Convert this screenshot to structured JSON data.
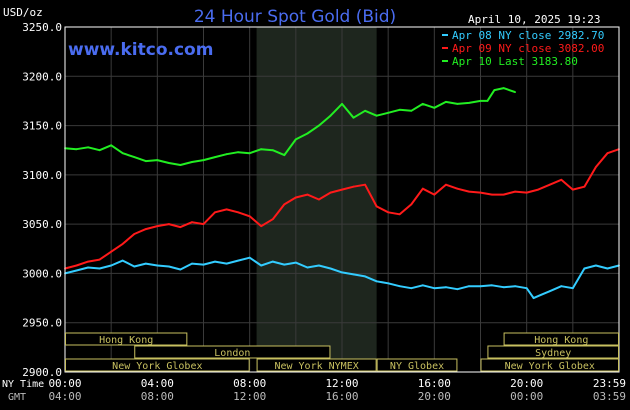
{
  "header": {
    "unit": "USD/oz",
    "title": "24 Hour Spot Gold (Bid)",
    "date": "April 10, 2025 19:23",
    "watermark": "www.kitco.com"
  },
  "footer": {
    "ny_label": "NY Time",
    "gmt_label": "GMT"
  },
  "sessions": [
    {
      "label": "Hong Kong",
      "start": 0.0,
      "end": 5.3,
      "row": 0
    },
    {
      "label": "London",
      "start": 3.0,
      "end": 11.5,
      "row": 1
    },
    {
      "label": "New York Globex",
      "start": 0.0,
      "end": 8.0,
      "row": 2
    },
    {
      "label": "New York NYMEX",
      "start": 8.3,
      "end": 13.5,
      "row": 2
    },
    {
      "label": "NY Globex",
      "start": 13.5,
      "end": 17.0,
      "row": 2
    },
    {
      "label": "Hong Kong",
      "start": 19.0,
      "end": 24.0,
      "row": 0
    },
    {
      "label": "Sydney",
      "start": 18.3,
      "end": 24.0,
      "row": 1
    },
    {
      "label": "New York Globex",
      "start": 18.0,
      "end": 24.0,
      "row": 2
    }
  ],
  "colors": {
    "background": "#000000",
    "grid": "#3a3a3a",
    "shade": "#1e261e",
    "axis": "#ffffff",
    "title": "#4a6cf0",
    "session_box": "#c8c060",
    "gmt_text": "#bbbbbb",
    "apr08": "#33ccff",
    "apr09": "#ff1a1a",
    "apr10": "#22ee22"
  },
  "chart_data": {
    "type": "line",
    "title": "24 Hour Spot Gold (Bid)",
    "ylabel": "USD/oz",
    "ylim": [
      2900,
      3250
    ],
    "xlim": [
      0,
      24
    ],
    "yticks": [
      "3250.0",
      "3200.0",
      "3150.0",
      "3100.0",
      "3050.0",
      "3000.0",
      "2950.0",
      "2900.0"
    ],
    "ytick_values": [
      3250,
      3200,
      3150,
      3100,
      3050,
      3000,
      2950,
      2900
    ],
    "xticks_ny": [
      "00:00",
      "04:00",
      "08:00",
      "12:00",
      "16:00",
      "20:00",
      "23:59"
    ],
    "xticks_gmt": [
      "04:00",
      "08:00",
      "12:00",
      "16:00",
      "20:00",
      "00:00",
      "03:59"
    ],
    "xtick_hours": [
      0,
      4,
      8,
      12,
      16,
      20,
      24
    ],
    "shaded_hours": [
      8.3,
      13.5
    ],
    "grid": true,
    "legend_position": "top-right",
    "series": [
      {
        "name": "Apr 08 NY close 2982.70",
        "color": "#33ccff",
        "x": [
          0,
          0.5,
          1,
          1.5,
          2,
          2.5,
          3,
          3.5,
          4,
          4.5,
          5,
          5.5,
          6,
          6.5,
          7,
          7.5,
          8,
          8.5,
          9,
          9.5,
          10,
          10.5,
          11,
          11.5,
          12,
          12.5,
          13,
          13.5,
          14,
          14.5,
          15,
          15.5,
          16,
          16.5,
          17,
          17.5,
          18,
          18.5,
          19,
          19.5,
          20,
          20.3,
          20.6,
          21,
          21.5,
          22,
          22.5,
          23,
          23.5,
          24
        ],
        "values": [
          3000,
          3003,
          3006,
          3005,
          3008,
          3013,
          3007,
          3010,
          3008,
          3007,
          3004,
          3010,
          3009,
          3012,
          3010,
          3013,
          3016,
          3008,
          3012,
          3009,
          3011,
          3006,
          3008,
          3005,
          3001,
          2999,
          2997,
          2992,
          2990,
          2987,
          2985,
          2988,
          2985,
          2986,
          2984,
          2987,
          2987,
          2988,
          2986,
          2987,
          2985,
          2975,
          2978,
          2982,
          2987,
          2985,
          3005,
          3008,
          3005,
          3008
        ]
      },
      {
        "name": "Apr 09 NY close 3082.00",
        "color": "#ff1a1a",
        "x": [
          0,
          0.5,
          1,
          1.5,
          2,
          2.5,
          3,
          3.5,
          4,
          4.5,
          5,
          5.5,
          6,
          6.5,
          7,
          7.5,
          8,
          8.5,
          9,
          9.5,
          10,
          10.5,
          11,
          11.5,
          12,
          12.5,
          13,
          13.5,
          14,
          14.5,
          15,
          15.5,
          16,
          16.5,
          17,
          17.5,
          18,
          18.5,
          19,
          19.5,
          20,
          20.5,
          21,
          21.5,
          22,
          22.5,
          23,
          23.5,
          24
        ],
        "values": [
          3005,
          3008,
          3012,
          3014,
          3022,
          3030,
          3040,
          3045,
          3048,
          3050,
          3047,
          3052,
          3050,
          3062,
          3065,
          3062,
          3058,
          3048,
          3055,
          3070,
          3077,
          3080,
          3075,
          3082,
          3085,
          3088,
          3090,
          3068,
          3062,
          3060,
          3070,
          3086,
          3080,
          3090,
          3086,
          3083,
          3082,
          3080,
          3080,
          3083,
          3082,
          3085,
          3090,
          3095,
          3085,
          3088,
          3108,
          3122,
          3126
        ]
      },
      {
        "name": "Apr 10 Last 3183.80",
        "color": "#22ee22",
        "x": [
          0,
          0.5,
          1,
          1.5,
          2,
          2.5,
          3,
          3.5,
          4,
          4.5,
          5,
          5.5,
          6,
          6.5,
          7,
          7.5,
          8,
          8.5,
          9,
          9.5,
          10,
          10.5,
          11,
          11.5,
          12,
          12.5,
          13,
          13.5,
          14,
          14.5,
          15,
          15.5,
          16,
          16.5,
          17,
          17.5,
          18,
          18.3,
          18.6,
          19,
          19.5
        ],
        "values": [
          3127,
          3126,
          3128,
          3125,
          3130,
          3122,
          3118,
          3114,
          3115,
          3112,
          3110,
          3113,
          3115,
          3118,
          3121,
          3123,
          3122,
          3126,
          3125,
          3120,
          3136,
          3142,
          3150,
          3160,
          3172,
          3158,
          3165,
          3160,
          3163,
          3166,
          3165,
          3172,
          3168,
          3174,
          3172,
          3173,
          3175,
          3175,
          3186,
          3188,
          3184
        ]
      }
    ]
  }
}
